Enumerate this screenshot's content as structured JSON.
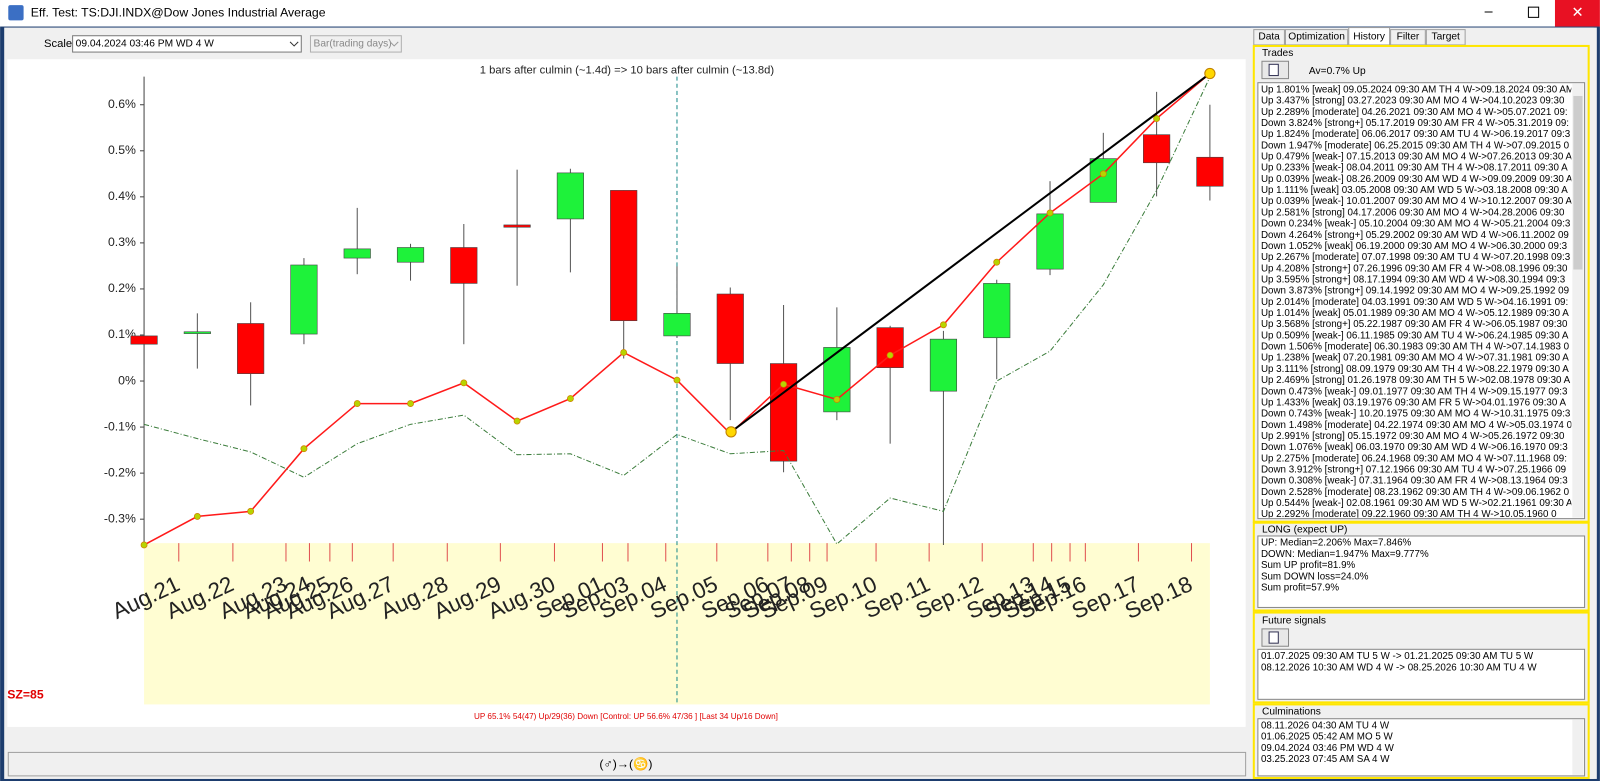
{
  "window": {
    "title": "Eff. Test: TS:DJI.INDX@Dow Jones Industrial Average"
  },
  "toolbar": {
    "scale_label": "Scale",
    "scale_value": "09.04.2024 03:46 PM WD  4 W",
    "bar_mode": "Bar(trading days)"
  },
  "chart_data": {
    "type": "candlestick",
    "header": "1 bars after culmin (~1.4d) => 10 bars after culmin (~13.8d)",
    "size_label": "SZ=85",
    "footer": "UP 65.1%  54(47) Up/29(36) Down [Control: UP 56.6%  47/36 ] [Last 34 Up/16 Down]",
    "x_labels": [
      "Aug.21",
      "Aug.22",
      "Aug.23",
      "Aug.24",
      "Aug.25",
      "Aug.26",
      "Aug.27",
      "Aug.28",
      "Aug.29",
      "Aug.30",
      "Sep.01",
      "Sep.03",
      "Sep.04",
      "Sep.05",
      "Sep.06",
      "Sep.07",
      "Sep.08",
      "Sep.09",
      "Sep.10",
      "Sep.11",
      "Sep.12",
      "Sep.13",
      "Sep.14",
      "Sep.15",
      "Sep.16",
      "Sep.17",
      "Sep.18"
    ],
    "up_color": "#1ef23a",
    "down_color": "#ff0000",
    "candles": [
      {
        "open": 0.098,
        "high": 0.111,
        "low": 0.036,
        "close": 0.08
      },
      {
        "open": 0.103,
        "high": 0.147,
        "low": 0.027,
        "close": 0.107
      },
      {
        "open": 0.125,
        "high": 0.171,
        "low": -0.053,
        "close": 0.016
      },
      {
        "open": 0.102,
        "high": 0.267,
        "low": 0.08,
        "close": 0.252
      },
      {
        "open": 0.267,
        "high": 0.376,
        "low": 0.232,
        "close": 0.287
      },
      {
        "open": 0.258,
        "high": 0.298,
        "low": 0.218,
        "close": 0.29
      },
      {
        "open": 0.29,
        "high": 0.341,
        "low": 0.08,
        "close": 0.212
      },
      {
        "open": 0.339,
        "high": 0.459,
        "low": 0.207,
        "close": 0.334
      },
      {
        "open": 0.352,
        "high": 0.461,
        "low": 0.236,
        "close": 0.452
      },
      {
        "open": 0.414,
        "high": 0.414,
        "low": 0.049,
        "close": 0.131
      },
      {
        "open": 0.098,
        "high": 0.249,
        "low": 0.094,
        "close": 0.147
      },
      {
        "open": 0.189,
        "high": 0.203,
        "low": -0.085,
        "close": 0.038
      },
      {
        "open": 0.038,
        "high": 0.165,
        "low": -0.198,
        "close": -0.174
      },
      {
        "open": -0.067,
        "high": 0.16,
        "low": -0.085,
        "close": 0.073
      },
      {
        "open": 0.116,
        "high": 0.12,
        "low": -0.136,
        "close": 0.029
      },
      {
        "open": -0.022,
        "high": 0.109,
        "low": -0.356,
        "close": 0.091
      },
      {
        "open": 0.094,
        "high": 0.22,
        "low": 0.004,
        "close": 0.212
      },
      {
        "open": 0.243,
        "high": 0.434,
        "low": 0.23,
        "close": 0.363
      },
      {
        "open": 0.388,
        "high": 0.539,
        "low": 0.388,
        "close": 0.483
      },
      {
        "open": 0.535,
        "high": 0.628,
        "low": 0.401,
        "close": 0.474
      },
      {
        "open": 0.486,
        "high": 0.6,
        "low": 0.392,
        "close": 0.423
      }
    ],
    "lines": [
      {
        "color": "#ff1a1a",
        "values": [
          -0.356,
          -0.294,
          -0.283,
          -0.147,
          -0.049,
          -0.049,
          -0.004,
          -0.087,
          -0.038,
          0.062,
          0.002,
          -0.114,
          -0.007,
          -0.04,
          0.056,
          0.122,
          0.258,
          0.365,
          0.45,
          0.57,
          0.668
        ]
      },
      {
        "color": "#3c7d3c",
        "dashed": true,
        "values": [
          -0.094,
          -0.125,
          -0.154,
          -0.209,
          -0.136,
          -0.094,
          -0.074,
          -0.16,
          -0.158,
          -0.205,
          -0.116,
          -0.158,
          -0.151,
          -0.354,
          -0.254,
          -0.283,
          0.0,
          0.065,
          0.209,
          0.414,
          0.66
        ]
      }
    ],
    "ylim": [
      -0.352,
      0.69
    ],
    "yticks": [
      {
        "value": -0.3,
        "label": "-0.3%"
      },
      {
        "value": -0.2,
        "label": "-0.2%"
      },
      {
        "value": -0.1,
        "label": "-0.1%"
      },
      {
        "value": 0,
        "label": "0%"
      },
      {
        "value": 0.1,
        "label": "0.1%"
      },
      {
        "value": 0.2,
        "label": "0.2%"
      },
      {
        "value": 0.3,
        "label": "0.3%"
      },
      {
        "value": 0.4,
        "label": "0.4%"
      },
      {
        "value": 0.5,
        "label": "0.5%"
      },
      {
        "value": 0.6,
        "label": "0.6%"
      }
    ]
  },
  "bottom_button": "(♂)→(♋)",
  "tabs": [
    "Data",
    "Optimization",
    "History",
    "Filter",
    "Target"
  ],
  "trades": {
    "title": "Trades",
    "average": "Av=0.7% Up",
    "rows": [
      "Up 1.801% [weak]  09.05.2024 09:30 AM TH  4 W->09.18.2024 09:30 AM",
      "Up 3.437% [strong]  03.27.2023 09:30 AM MO  4 W->04.10.2023 09:30",
      "Up 2.289% [moderate]  04.26.2021 09:30 AM MO  4 W->05.07.2021 09:",
      "Down 3.824% [strong+]  05.17.2019 09:30 AM FR  4 W->05.31.2019 09:",
      "Up 1.824% [moderate]  06.06.2017 09:30 AM TU  4 W->06.19.2017 09:3",
      "Down 1.947% [moderate]  06.25.2015 09:30 AM TH  4 W->07.09.2015 0",
      "Up 0.479% [weak-]  07.15.2013 09:30 AM MO  4 W->07.26.2013 09:30 A",
      "Up 0.233% [weak-]  08.04.2011 09:30 AM TH  4 W->08.17.2011 09:30 A",
      "Up 0.039% [weak-]  08.26.2009 09:30 AM WD  4 W->09.09.2009 09:30 A",
      "Up 1.111% [weak]  03.05.2008 09:30 AM WD  5 W->03.18.2008 09:30 A",
      "Up 0.039% [weak-]  10.01.2007 09:30 AM MO  4 W->10.12.2007 09:30 A",
      "Up 2.581% [strong]  04.17.2006 09:30 AM MO  4 W->04.28.2006 09:30",
      "Down 0.234% [weak-]  05.10.2004 09:30 AM MO  4 W->05.21.2004 09:3",
      "Down 4.264% [strong+]  05.29.2002 09:30 AM WD  4 W->06.11.2002 09",
      "Down 1.052% [weak]  06.19.2000 09:30 AM MO  4 W->06.30.2000 09:3",
      "Up 2.267% [moderate]  07.07.1998 09:30 AM TU  4 W->07.20.1998 09:3",
      "Up 4.208% [strong+]  07.26.1996 09:30 AM FR  4 W->08.08.1996 09:30",
      "Up 3.595% [strong+]  08.17.1994 09:30 AM WD  4 W->08.30.1994 09:3",
      "Down 3.873% [strong+]  09.14.1992 09:30 AM MO  4 W->09.25.1992 09",
      "Up 2.014% [moderate]  04.03.1991 09:30 AM WD  5 W->04.16.1991 09:",
      "Up 1.014% [weak]  05.01.1989 09:30 AM MO  4 W->05.12.1989 09:30 A",
      "Up 3.568% [strong+]  05.22.1987 09:30 AM FR  4 W->06.05.1987 09:30",
      "Up 0.509% [weak-]  06.11.1985 09:30 AM TU  4 W->06.24.1985 09:30 A",
      "Down 1.506% [moderate]  06.30.1983 09:30 AM TH  4 W->07.14.1983 0",
      "Up 1.238% [weak]  07.20.1981 09:30 AM MO  4 W->07.31.1981 09:30 A",
      "Up 3.111% [strong]  08.09.1979 09:30 AM TH  4 W->08.22.1979 09:30 A",
      "Up 2.469% [strong]  01.26.1978 09:30 AM TH  5 W->02.08.1978 09:30 A",
      "Down 0.473% [weak-]  09.01.1977 09:30 AM TH  4 W->09.15.1977 09:3",
      "Up 1.433% [weak]  03.19.1976 09:30 AM FR  5 W->04.01.1976 09:30 A",
      "Down 0.743% [weak-]  10.20.1975 09:30 AM MO  4 W->10.31.1975 09:3",
      "Down 1.498% [moderate]  04.22.1974 09:30 AM MO  4 W->05.03.1974 0",
      "Up 2.991% [strong]  05.15.1972 09:30 AM MO  4 W->05.26.1972 09:30",
      "Down 1.076% [weak]  06.03.1970 09:30 AM WD  4 W->06.16.1970 09:3",
      "Up 2.275% [moderate]  06.24.1968 09:30 AM MO  4 W->07.11.1968 09:",
      "Down 3.912% [strong+]  07.12.1966 09:30 AM TU  4 W->07.25.1966 09",
      "Down 0.308% [weak-]  07.31.1964 09:30 AM FR  4 W->08.13.1964 09:3",
      "Down 2.528% [moderate]  08.23.1962 09:30 AM TH  4 W->09.06.1962 0",
      "Up 0.544% [weak-]  02.08.1961 09:30 AM WD  5 W->02.21.1961 09:30 A",
      "Up 2.292% [moderate]  09.22.1960 09:30 AM TH  4 W->10.05.1960 0"
    ]
  },
  "long": {
    "title": "LONG (expect UP)",
    "rows": [
      "UP: Median=2.206%  Max=7.846%",
      "DOWN: Median=1.947%  Max=9.777%",
      "Sum UP profit=81.9%",
      "Sum DOWN loss=24.0%",
      "Sum profit=57.9%"
    ]
  },
  "future_signals": {
    "title": "Future signals",
    "rows": [
      "01.07.2025  09:30 AM TU  5 W -> 01.21.2025  09:30 AM TU  5 W",
      "08.12.2026  10:30 AM WD  4 W -> 08.25.2026  10:30 AM TU  4 W"
    ]
  },
  "culminations": {
    "title": "Culminations",
    "rows": [
      "08.11.2026  04:30 AM TU  4 W",
      "01.06.2025  05:42 AM MO  5 W",
      "09.04.2024  03:46 PM WD  4 W",
      "03.25.2023  07:45 AM SA  4 W"
    ]
  }
}
